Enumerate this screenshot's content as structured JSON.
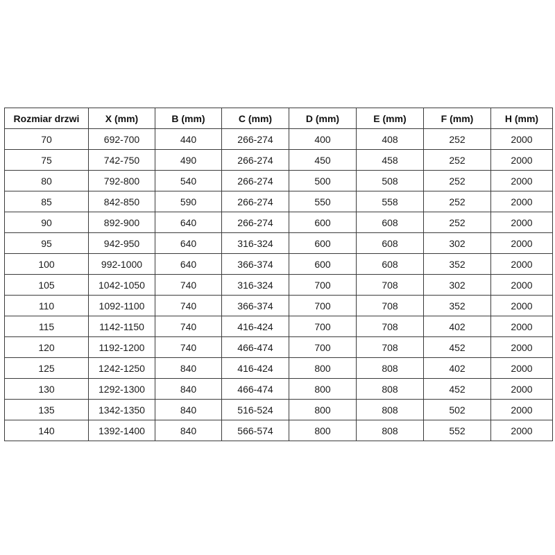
{
  "colors": {
    "page_background": "#ffffff",
    "table_border": "#3a3a3a",
    "text": "#1a1a1a"
  },
  "table": {
    "header": [
      "Rozmiar drzwi",
      "X (mm)",
      "B (mm)",
      "C (mm)",
      "D (mm)",
      "E (mm)",
      "F (mm)",
      "H (mm)"
    ],
    "rows": [
      [
        "70",
        "692-700",
        "440",
        "266-274",
        "400",
        "408",
        "252",
        "2000"
      ],
      [
        "75",
        "742-750",
        "490",
        "266-274",
        "450",
        "458",
        "252",
        "2000"
      ],
      [
        "80",
        "792-800",
        "540",
        "266-274",
        "500",
        "508",
        "252",
        "2000"
      ],
      [
        "85",
        "842-850",
        "590",
        "266-274",
        "550",
        "558",
        "252",
        "2000"
      ],
      [
        "90",
        "892-900",
        "640",
        "266-274",
        "600",
        "608",
        "252",
        "2000"
      ],
      [
        "95",
        "942-950",
        "640",
        "316-324",
        "600",
        "608",
        "302",
        "2000"
      ],
      [
        "100",
        "992-1000",
        "640",
        "366-374",
        "600",
        "608",
        "352",
        "2000"
      ],
      [
        "105",
        "1042-1050",
        "740",
        "316-324",
        "700",
        "708",
        "302",
        "2000"
      ],
      [
        "110",
        "1092-1100",
        "740",
        "366-374",
        "700",
        "708",
        "352",
        "2000"
      ],
      [
        "115",
        "1142-1150",
        "740",
        "416-424",
        "700",
        "708",
        "402",
        "2000"
      ],
      [
        "120",
        "1192-1200",
        "740",
        "466-474",
        "700",
        "708",
        "452",
        "2000"
      ],
      [
        "125",
        "1242-1250",
        "840",
        "416-424",
        "800",
        "808",
        "402",
        "2000"
      ],
      [
        "130",
        "1292-1300",
        "840",
        "466-474",
        "800",
        "808",
        "452",
        "2000"
      ],
      [
        "135",
        "1342-1350",
        "840",
        "516-524",
        "800",
        "808",
        "502",
        "2000"
      ],
      [
        "140",
        "1392-1400",
        "840",
        "566-574",
        "800",
        "808",
        "552",
        "2000"
      ]
    ]
  }
}
